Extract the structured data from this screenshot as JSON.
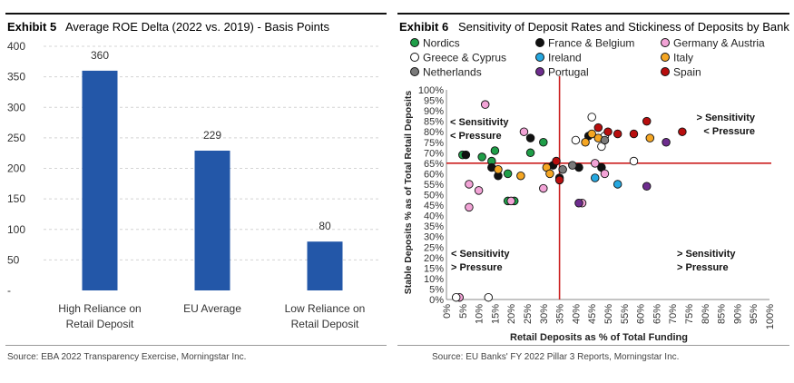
{
  "chart_data": [
    {
      "type": "bar",
      "exhibit_label": "Exhibit 5",
      "title": "Average ROE Delta (2022 vs. 2019) - Basis Points",
      "categories": [
        "High Reliance on Retail Deposit",
        "EU Average",
        "Low Reliance on Retail Deposit"
      ],
      "category_lines": [
        [
          "High Reliance on",
          "Retail Deposit"
        ],
        [
          "EU Average"
        ],
        [
          "Low Reliance on",
          "Retail Deposit"
        ]
      ],
      "values": [
        360,
        229,
        80
      ],
      "value_labels": [
        "360",
        "229",
        "80"
      ],
      "ylim": [
        0,
        400
      ],
      "yticks": [
        0,
        50,
        100,
        150,
        200,
        250,
        300,
        350,
        400
      ],
      "ytick_labels": [
        "-",
        "50",
        "100",
        "150",
        "200",
        "250",
        "300",
        "350",
        "400"
      ],
      "bar_color": "#2357a8",
      "source": "Source: EBA 2022 Transparency Exercise, Morningstar Inc."
    },
    {
      "type": "scatter",
      "exhibit_label": "Exhibit 6",
      "title": "Sensitivity of Deposit Rates and Stickiness of Deposits by Bank",
      "xlabel": "Retail Deposits as % of Total Funding",
      "ylabel": "Stable Deposits % as of Total Retail Deposits",
      "xlim": [
        0,
        100
      ],
      "ylim": [
        0,
        100
      ],
      "ticks": [
        0,
        5,
        10,
        15,
        20,
        25,
        30,
        35,
        40,
        45,
        50,
        55,
        60,
        65,
        70,
        75,
        80,
        85,
        90,
        95,
        100
      ],
      "tick_suffix": "%",
      "ref_x": 35,
      "ref_y": 65,
      "ref_color": "#cc1f1f",
      "annotations": [
        {
          "lines": [
            "< Sensitivity",
            "< Pressure"
          ],
          "pos": "upper-left"
        },
        {
          "lines": [
            "> Sensitivity",
            "< Pressure"
          ],
          "pos": "upper-right"
        },
        {
          "lines": [
            "< Sensitivity",
            "> Pressure"
          ],
          "pos": "lower-left"
        },
        {
          "lines": [
            "> Sensitivity",
            "> Pressure"
          ],
          "pos": "lower-right"
        }
      ],
      "series": [
        {
          "name": "Nordics",
          "color": "#1f9e48",
          "points": [
            [
              5,
              69
            ],
            [
              11,
              68
            ],
            [
              14,
              66
            ],
            [
              15,
              71
            ],
            [
              19,
              60
            ],
            [
              19,
              47
            ],
            [
              21,
              47
            ],
            [
              26,
              70
            ],
            [
              30,
              75
            ]
          ]
        },
        {
          "name": "France & Belgium",
          "color": "#111111",
          "points": [
            [
              6,
              69
            ],
            [
              14,
              63
            ],
            [
              16,
              59
            ],
            [
              26,
              77
            ],
            [
              33,
              64
            ],
            [
              35,
              58
            ],
            [
              41,
              63
            ],
            [
              44,
              78
            ],
            [
              48,
              63
            ]
          ]
        },
        {
          "name": "Germany & Austria",
          "color": "#f2a3d6",
          "points": [
            [
              4,
              1
            ],
            [
              7,
              55
            ],
            [
              7,
              44
            ],
            [
              10,
              52
            ],
            [
              12,
              93
            ],
            [
              20,
              47
            ],
            [
              24,
              80
            ],
            [
              30,
              53
            ],
            [
              42,
              46
            ],
            [
              46,
              65
            ],
            [
              49,
              60
            ]
          ]
        },
        {
          "name": "Greece & Cyprus",
          "color": "#ffffff",
          "points": [
            [
              40,
              76
            ],
            [
              45,
              87
            ],
            [
              48,
              73
            ],
            [
              49,
              78
            ],
            [
              58,
              66
            ]
          ]
        },
        {
          "name": "Ireland",
          "color": "#26a8e0",
          "points": [
            [
              46,
              58
            ],
            [
              53,
              55
            ]
          ]
        },
        {
          "name": "Italy",
          "color": "#f5a623",
          "points": [
            [
              16,
              62
            ],
            [
              23,
              59
            ],
            [
              31,
              63
            ],
            [
              32,
              60
            ],
            [
              43,
              75
            ],
            [
              45,
              79
            ],
            [
              47,
              77
            ],
            [
              63,
              77
            ]
          ]
        },
        {
          "name": "Netherlands",
          "color": "#7a7a7a",
          "points": [
            [
              36,
              62
            ],
            [
              39,
              64
            ],
            [
              49,
              76
            ]
          ]
        },
        {
          "name": "Portugal",
          "color": "#6e2d8e",
          "points": [
            [
              41,
              46
            ],
            [
              62,
              54
            ],
            [
              68,
              75
            ]
          ]
        },
        {
          "name": "Spain",
          "color": "#b80e0e",
          "points": [
            [
              34,
              66
            ],
            [
              35,
              57
            ],
            [
              47,
              82
            ],
            [
              50,
              80
            ],
            [
              53,
              79
            ],
            [
              58,
              79
            ],
            [
              62,
              85
            ],
            [
              73,
              80
            ]
          ]
        }
      ],
      "outlier_points": [
        [
          3,
          1
        ],
        [
          13,
          1
        ]
      ],
      "source": "Source: EU Banks' FY 2022 Pillar 3 Reports, Morningstar Inc."
    }
  ]
}
